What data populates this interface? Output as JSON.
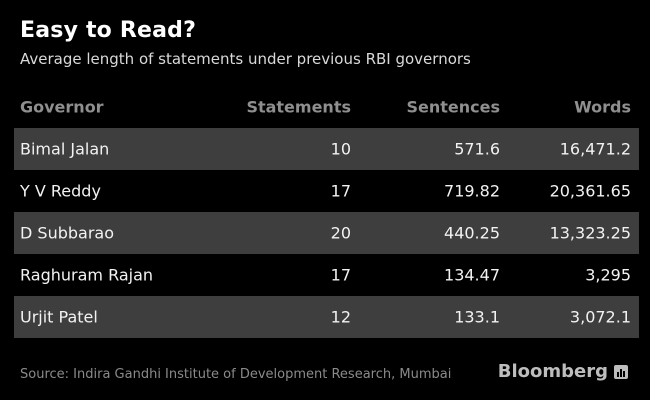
{
  "title": "Easy to Read?",
  "subtitle": "Average length of statements under previous RBI governors",
  "source": "Source: Indira Gandhi Institute of Development Research, Mumbai",
  "brand": "Bloomberg",
  "colors": {
    "background": "#000000",
    "row_shade": "#3e3e3e",
    "header_text": "#8f8f8f"
  },
  "chart_data": {
    "type": "table",
    "title": "Easy to Read?",
    "subtitle": "Average length of statements under previous RBI governors",
    "columns": [
      "Governor",
      "Statements",
      "Sentences",
      "Words"
    ],
    "rows": [
      [
        "Bimal Jalan",
        "10",
        "571.6",
        "16,471.2"
      ],
      [
        "Y V Reddy",
        "17",
        "719.82",
        "20,361.65"
      ],
      [
        "D Subbarao",
        "20",
        "440.25",
        "13,323.25"
      ],
      [
        "Raghuram Rajan",
        "17",
        "134.47",
        "3,295"
      ],
      [
        "Urjit Patel",
        "12",
        "133.1",
        "3,072.1"
      ]
    ]
  }
}
